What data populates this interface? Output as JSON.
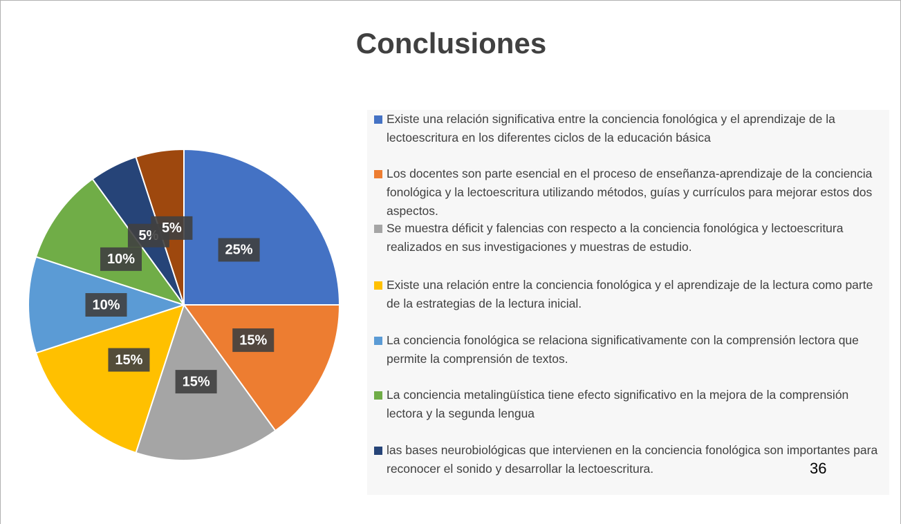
{
  "chart_data": {
    "type": "pie",
    "title": "Conclusiones",
    "categories": [
      "Existe una relación significativa entre  la conciencia fonológica y el aprendizaje de la lectoescritura en los diferentes ciclos de la educación básica",
      "Los docentes son parte esencial en el proceso de enseñanza-aprendizaje de la conciencia fonológica y la lectoescritura  utilizando métodos, guías y currículos para mejorar estos dos aspectos.",
      "Se muestra déficit y falencias con respecto a la conciencia fonológica y lectoescritura  realizados en sus investigaciones y muestras de estudio.",
      "Existe una relación entre la conciencia fonológica  y el aprendizaje de la lectura  como parte de la estrategias de la lectura inicial.",
      "La conciencia fonológica se relaciona significativamente con la comprensión lectora que permite la comprensión de textos.",
      "La conciencia metalingüística tiene efecto significativo en la mejora de la comprensión lectora y la segunda lengua",
      "las bases neurobiológicas que intervienen en la conciencia fonológica son importantes para reconocer el sonido y    desarrollar la lectoescritura.",
      null
    ],
    "values": [
      25,
      15,
      15,
      15,
      10,
      10,
      5,
      5
    ],
    "value_labels": [
      "25%",
      "15%",
      "15%",
      "15%",
      "10%",
      "10%",
      "5%",
      "5%"
    ],
    "colors": [
      "#4472c4",
      "#ed7d31",
      "#a5a5a5",
      "#ffc000",
      "#5b9bd5",
      "#70ad47",
      "#264478",
      "#9e480e"
    ],
    "page_number": "36"
  }
}
